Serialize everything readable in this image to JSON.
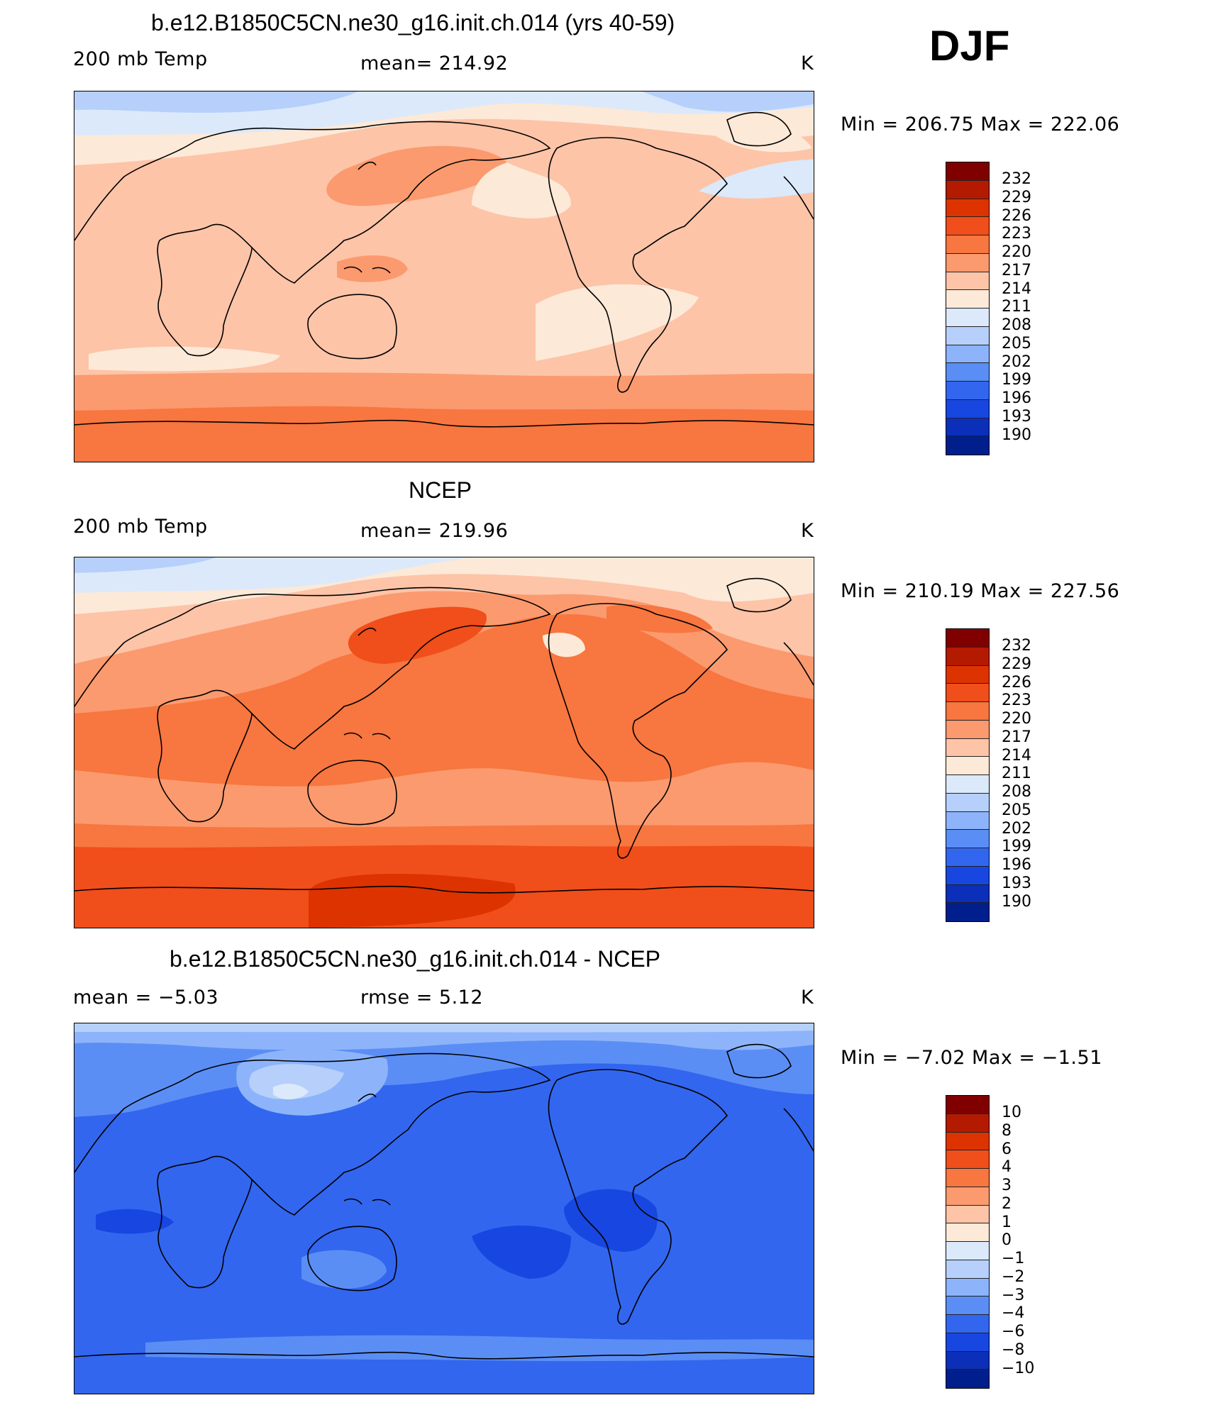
{
  "season": "DJF",
  "panels": [
    {
      "title": "b.e12.B1850C5CN.ne30_g16.init.ch.014 (yrs 40-59)",
      "left_label": "200 mb Temp",
      "center_label": "mean=  214.92",
      "units": "K",
      "minmax": "Min  =  206.75  Max  =  222.06",
      "colorbar": [
        "232",
        "229",
        "226",
        "223",
        "220",
        "217",
        "214",
        "211",
        "208",
        "205",
        "202",
        "199",
        "196",
        "193",
        "190"
      ]
    },
    {
      "title": "NCEP",
      "left_label": "200 mb Temp",
      "center_label": "mean=  219.96",
      "units": "K",
      "minmax": "Min  =  210.19  Max  =  227.56",
      "colorbar": [
        "232",
        "229",
        "226",
        "223",
        "220",
        "217",
        "214",
        "211",
        "208",
        "205",
        "202",
        "199",
        "196",
        "193",
        "190"
      ]
    },
    {
      "title": "b.e12.B1850C5CN.ne30_g16.init.ch.014 - NCEP",
      "left_label": "mean  =    −5.03",
      "center_label": "rmse  =     5.12",
      "units": "K",
      "minmax": "Min  =   −7.02  Max  =   −1.51",
      "colorbar": [
        "10",
        "8",
        "6",
        "4",
        "3",
        "2",
        "1",
        "0",
        "−1",
        "−2",
        "−3",
        "−4",
        "−6",
        "−8",
        "−10"
      ]
    }
  ],
  "colors": {
    "scale": [
      "#800000",
      "#b31a00",
      "#dd3300",
      "#f04e1a",
      "#f8763f",
      "#fb9a6e",
      "#fdc4a8",
      "#fde9d8",
      "#dbe9fb",
      "#b6d0fb",
      "#8db4fa",
      "#5b8ef5",
      "#3366ee",
      "#1747e0",
      "#0b2fb8",
      "#001f8c"
    ],
    "coast": "#000000"
  }
}
